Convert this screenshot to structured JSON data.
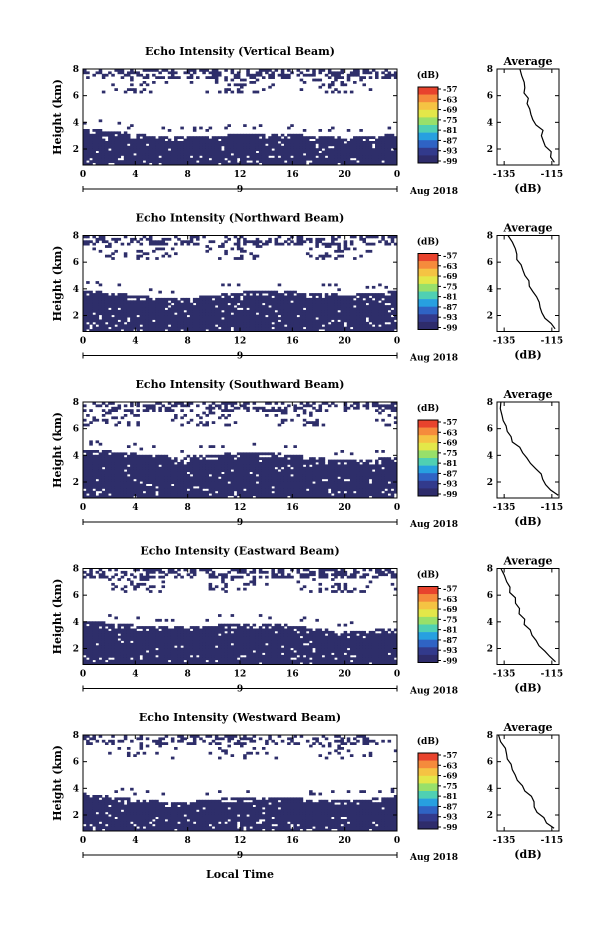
{
  "chart_data": {
    "type": "heatmap",
    "colorbar": {
      "unit": "(dB)",
      "ticks": [
        "-57",
        "-63",
        "-69",
        "-75",
        "-81",
        "-87",
        "-93",
        "-99"
      ],
      "colors": [
        "#e8432d",
        "#f58b3c",
        "#f5c343",
        "#e3e749",
        "#98e06a",
        "#4fd0b3",
        "#27a0e0",
        "#2f63c4",
        "#323a8c",
        "#2e2c6b"
      ],
      "threshold_color": "#2e2e6a",
      "threshold_level": "-99"
    },
    "x_axis": {
      "label": "Local Time",
      "ticks": [
        "0",
        "4",
        "8",
        "12",
        "16",
        "20",
        "0"
      ],
      "range_hours": [
        0,
        24
      ],
      "day_tick": "9",
      "month_label": "Aug 2018"
    },
    "y_axis": {
      "label": "Height (km)",
      "ticks": [
        "2",
        "4",
        "6",
        "8"
      ],
      "range_km": [
        0.8,
        8
      ]
    },
    "profile": {
      "title": "Average",
      "xlabel": "(dB)",
      "xticks": [
        "-135",
        "-115"
      ],
      "yticks": [
        "2",
        "4",
        "6",
        "8"
      ]
    },
    "panels": [
      {
        "title": "Echo Intensity (Vertical Beam)",
        "boundary_km": 3.2,
        "upper_patch_density": 0.22,
        "seed": 11,
        "profile_db": [
          [
            8,
            -128
          ],
          [
            7.5,
            -128
          ],
          [
            7,
            -127
          ],
          [
            6.6,
            -126
          ],
          [
            6.2,
            -126
          ],
          [
            5.8,
            -125
          ],
          [
            5.4,
            -125
          ],
          [
            5,
            -124
          ],
          [
            4.6,
            -124
          ],
          [
            4.2,
            -123
          ],
          [
            3.8,
            -121
          ],
          [
            3.4,
            -119
          ],
          [
            3,
            -119
          ],
          [
            2.6,
            -118
          ],
          [
            2.2,
            -118
          ],
          [
            1.8,
            -116
          ],
          [
            1.4,
            -115
          ],
          [
            1,
            -114
          ]
        ]
      },
      {
        "title": "Echo Intensity (Northward Beam)",
        "boundary_km": 3.7,
        "upper_patch_density": 0.2,
        "seed": 23,
        "profile_db": [
          [
            8,
            -133
          ],
          [
            7.5,
            -132
          ],
          [
            7,
            -131
          ],
          [
            6.6,
            -130
          ],
          [
            6.2,
            -129
          ],
          [
            5.8,
            -128
          ],
          [
            5.4,
            -127
          ],
          [
            5,
            -126
          ],
          [
            4.6,
            -125
          ],
          [
            4.2,
            -124
          ],
          [
            3.8,
            -123
          ],
          [
            3.4,
            -122
          ],
          [
            3,
            -121
          ],
          [
            2.6,
            -120
          ],
          [
            2.2,
            -119
          ],
          [
            1.8,
            -118
          ],
          [
            1.4,
            -116
          ],
          [
            1,
            -114
          ]
        ]
      },
      {
        "title": "Echo Intensity (Southward Beam)",
        "boundary_km": 4.0,
        "upper_patch_density": 0.2,
        "seed": 37,
        "profile_db": [
          [
            8,
            -136
          ],
          [
            7.5,
            -136
          ],
          [
            7,
            -136
          ],
          [
            6.6,
            -135
          ],
          [
            6.2,
            -134
          ],
          [
            5.8,
            -133
          ],
          [
            5.4,
            -132
          ],
          [
            5,
            -131
          ],
          [
            4.6,
            -129
          ],
          [
            4.2,
            -128
          ],
          [
            3.8,
            -126
          ],
          [
            3.4,
            -124
          ],
          [
            3,
            -122
          ],
          [
            2.6,
            -120
          ],
          [
            2.2,
            -119
          ],
          [
            1.8,
            -117
          ],
          [
            1.4,
            -115
          ],
          [
            1,
            -113
          ]
        ]
      },
      {
        "title": "Echo Intensity (Eastward Beam)",
        "boundary_km": 3.6,
        "upper_patch_density": 0.22,
        "seed": 53,
        "profile_db": [
          [
            8,
            -136
          ],
          [
            7.5,
            -135
          ],
          [
            7,
            -134
          ],
          [
            6.6,
            -133
          ],
          [
            6.2,
            -132
          ],
          [
            5.8,
            -131
          ],
          [
            5.4,
            -130
          ],
          [
            5,
            -129
          ],
          [
            4.6,
            -128
          ],
          [
            4.2,
            -127
          ],
          [
            3.8,
            -126
          ],
          [
            3.4,
            -124
          ],
          [
            3,
            -123
          ],
          [
            2.6,
            -121
          ],
          [
            2.2,
            -120
          ],
          [
            1.8,
            -118
          ],
          [
            1.4,
            -116
          ],
          [
            1,
            -113
          ]
        ]
      },
      {
        "title": "Echo Intensity (Westward Beam)",
        "boundary_km": 3.3,
        "upper_patch_density": 0.16,
        "seed": 71,
        "profile_db": [
          [
            8,
            -137
          ],
          [
            7.5,
            -136
          ],
          [
            7,
            -135
          ],
          [
            6.6,
            -134
          ],
          [
            6.2,
            -133
          ],
          [
            5.8,
            -132
          ],
          [
            5.4,
            -131
          ],
          [
            5,
            -130
          ],
          [
            4.6,
            -129
          ],
          [
            4.2,
            -128
          ],
          [
            3.8,
            -126
          ],
          [
            3.4,
            -124
          ],
          [
            3,
            -123
          ],
          [
            2.6,
            -122
          ],
          [
            2.2,
            -121
          ],
          [
            1.8,
            -119
          ],
          [
            1.4,
            -117
          ],
          [
            1,
            -114
          ]
        ]
      }
    ]
  }
}
